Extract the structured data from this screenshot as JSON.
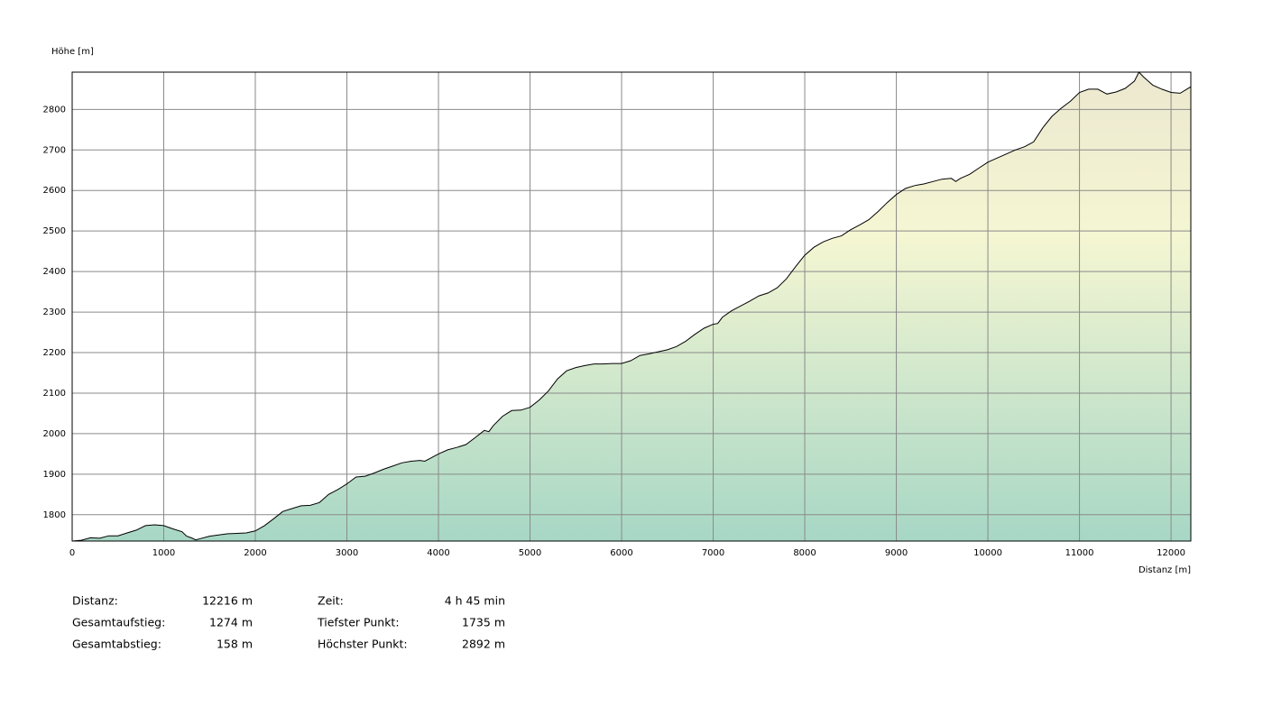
{
  "chart_data": {
    "type": "area",
    "y_label": "Höhe [m]",
    "x_label": "Distanz [m]",
    "x": [
      0,
      100,
      200,
      300,
      400,
      500,
      600,
      700,
      800,
      900,
      1000,
      1100,
      1200,
      1250,
      1300,
      1350,
      1400,
      1500,
      1600,
      1700,
      1800,
      1900,
      2000,
      2100,
      2200,
      2300,
      2400,
      2500,
      2600,
      2700,
      2800,
      2900,
      3000,
      3100,
      3200,
      3300,
      3400,
      3500,
      3600,
      3700,
      3800,
      3850,
      3900,
      4000,
      4100,
      4200,
      4300,
      4400,
      4500,
      4550,
      4600,
      4700,
      4800,
      4900,
      5000,
      5100,
      5200,
      5300,
      5400,
      5500,
      5600,
      5700,
      5800,
      5900,
      6000,
      6100,
      6200,
      6300,
      6400,
      6500,
      6600,
      6700,
      6800,
      6900,
      7000,
      7050,
      7100,
      7200,
      7300,
      7400,
      7500,
      7600,
      7700,
      7800,
      7900,
      8000,
      8100,
      8200,
      8300,
      8400,
      8500,
      8600,
      8700,
      8800,
      8900,
      9000,
      9100,
      9200,
      9300,
      9400,
      9500,
      9600,
      9650,
      9700,
      9800,
      9900,
      10000,
      10100,
      10200,
      10300,
      10400,
      10500,
      10600,
      10700,
      10800,
      10900,
      11000,
      11100,
      11200,
      11300,
      11400,
      11500,
      11600,
      11650,
      11700,
      11800,
      11900,
      12000,
      12100,
      12216
    ],
    "values": [
      1735,
      1737,
      1743,
      1742,
      1748,
      1748,
      1755,
      1762,
      1773,
      1775,
      1773,
      1765,
      1758,
      1747,
      1743,
      1738,
      1741,
      1747,
      1750,
      1753,
      1754,
      1755,
      1760,
      1773,
      1790,
      1808,
      1815,
      1822,
      1823,
      1830,
      1850,
      1862,
      1876,
      1893,
      1895,
      1903,
      1912,
      1920,
      1928,
      1932,
      1934,
      1932,
      1938,
      1950,
      1960,
      1966,
      1973,
      1990,
      2008,
      2005,
      2020,
      2043,
      2057,
      2058,
      2065,
      2083,
      2105,
      2135,
      2155,
      2163,
      2168,
      2172,
      2172,
      2173,
      2173,
      2180,
      2193,
      2197,
      2202,
      2207,
      2215,
      2228,
      2245,
      2260,
      2270,
      2272,
      2287,
      2303,
      2315,
      2327,
      2340,
      2347,
      2360,
      2382,
      2412,
      2440,
      2460,
      2473,
      2482,
      2488,
      2503,
      2515,
      2528,
      2548,
      2570,
      2590,
      2605,
      2612,
      2616,
      2622,
      2628,
      2630,
      2622,
      2630,
      2640,
      2655,
      2670,
      2680,
      2690,
      2700,
      2708,
      2720,
      2755,
      2783,
      2803,
      2820,
      2842,
      2850,
      2850,
      2838,
      2843,
      2852,
      2870,
      2892,
      2880,
      2860,
      2850,
      2842,
      2840,
      2856
    ],
    "color": "#000000",
    "fill_colors": [
      "#ece8d0",
      "#f5f6d2",
      "#a7d7c5"
    ],
    "xlim": [
      0,
      12216
    ],
    "ylim": [
      1735,
      2892
    ],
    "xticks": [
      0,
      1000,
      2000,
      3000,
      4000,
      5000,
      6000,
      7000,
      8000,
      9000,
      10000,
      11000,
      12000
    ],
    "yticks": [
      1800,
      1900,
      2000,
      2100,
      2200,
      2300,
      2400,
      2500,
      2600,
      2700,
      2800
    ],
    "grid": true
  },
  "stats": [
    [
      {
        "label": "Distanz:",
        "value": "12216 m"
      },
      {
        "label": "Zeit:",
        "value": "4 h 45 min"
      }
    ],
    [
      {
        "label": "Gesamtaufstieg:",
        "value": "1274 m"
      },
      {
        "label": "Tiefster Punkt:",
        "value": "1735 m"
      }
    ],
    [
      {
        "label": "Gesamtabstieg:",
        "value": "158 m"
      },
      {
        "label": "Höchster Punkt:",
        "value": "2892 m"
      }
    ]
  ]
}
